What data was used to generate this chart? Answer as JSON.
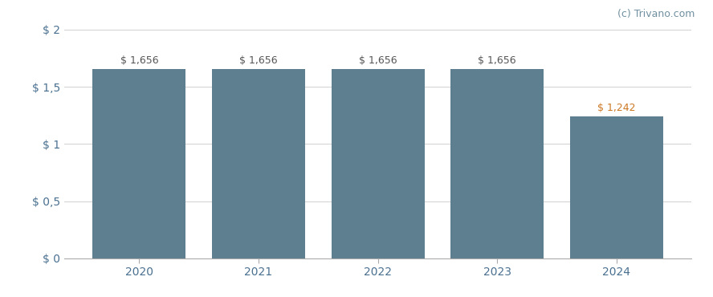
{
  "categories": [
    "2020",
    "2021",
    "2022",
    "2023",
    "2024"
  ],
  "values": [
    1.656,
    1.656,
    1.656,
    1.656,
    1.242
  ],
  "bar_labels": [
    "$ 1,656",
    "$ 1,656",
    "$ 1,656",
    "$ 1,656",
    "$ 1,242"
  ],
  "bar_color": "#5d7f8f",
  "background_color": "#ffffff",
  "ylim": [
    0,
    2.0
  ],
  "yticks": [
    0,
    0.5,
    1.0,
    1.5,
    2.0
  ],
  "ytick_labels": [
    "$ 0",
    "$ 0,5",
    "$ 1",
    "$ 1,5",
    "$ 2"
  ],
  "grid_color": "#d0d0d0",
  "label_color_normal": "#555555",
  "label_color_last": "#cc7722",
  "watermark_text": "(c) Trivano.com",
  "watermark_color": "#7090a0",
  "bar_width": 0.78,
  "label_fontsize": 9,
  "tick_fontsize": 10,
  "watermark_fontsize": 9,
  "ytick_color": "#4a7090"
}
